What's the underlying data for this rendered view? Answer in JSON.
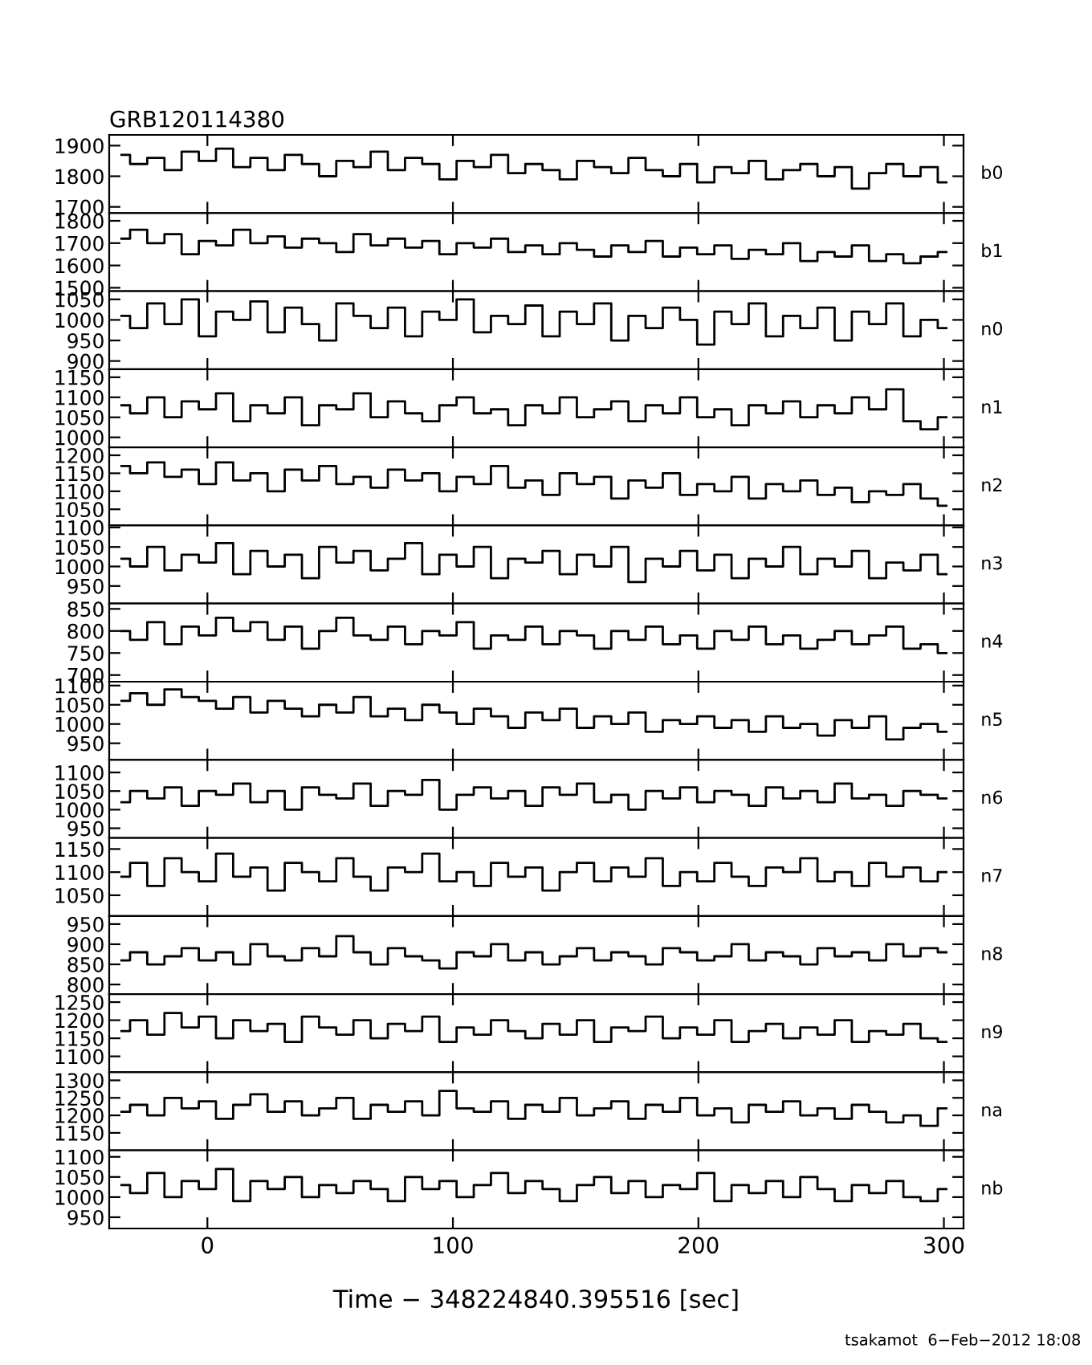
{
  "chart_data": [
    {
      "type": "step",
      "title": "GRB120114380",
      "y2label": "b0",
      "tick_labels": "y",
      "xlim": [
        -40,
        308
      ],
      "xticks": [
        0,
        100,
        200,
        300
      ],
      "ylim": [
        1680,
        1935
      ],
      "yticks": [
        1700,
        1800,
        1900
      ],
      "x": [
        -35,
        -28,
        -21,
        -14,
        -7,
        0,
        7,
        14,
        21,
        28,
        35,
        42,
        49,
        56,
        63,
        70,
        77,
        84,
        91,
        98,
        105,
        112,
        119,
        126,
        133,
        140,
        147,
        154,
        161,
        168,
        175,
        182,
        189,
        196,
        203,
        210,
        217,
        224,
        231,
        238,
        245,
        252,
        259,
        266,
        273,
        280,
        287,
        294,
        301
      ],
      "series": [
        {
          "color": "#000000",
          "values": [
            1870,
            1840,
            1860,
            1820,
            1880,
            1850,
            1890,
            1830,
            1860,
            1820,
            1870,
            1840,
            1800,
            1850,
            1830,
            1880,
            1820,
            1860,
            1840,
            1790,
            1850,
            1830,
            1870,
            1810,
            1840,
            1820,
            1790,
            1850,
            1830,
            1810,
            1860,
            1820,
            1800,
            1840,
            1780,
            1830,
            1810,
            1850,
            1790,
            1820,
            1840,
            1800,
            1830,
            1760,
            1810,
            1840,
            1800,
            1830,
            1780
          ]
        }
      ]
    },
    {
      "type": "step",
      "y2label": "b1",
      "tick_labels": "y",
      "xlim": [
        -40,
        308
      ],
      "xticks": [
        0,
        100,
        200,
        300
      ],
      "ylim": [
        1485,
        1835
      ],
      "yticks": [
        1500,
        1600,
        1700,
        1800
      ],
      "x": [
        -35,
        -28,
        -21,
        -14,
        -7,
        0,
        7,
        14,
        21,
        28,
        35,
        42,
        49,
        56,
        63,
        70,
        77,
        84,
        91,
        98,
        105,
        112,
        119,
        126,
        133,
        140,
        147,
        154,
        161,
        168,
        175,
        182,
        189,
        196,
        203,
        210,
        217,
        224,
        231,
        238,
        245,
        252,
        259,
        266,
        273,
        280,
        287,
        294,
        301
      ],
      "series": [
        {
          "color": "#000000",
          "values": [
            1720,
            1760,
            1700,
            1740,
            1650,
            1710,
            1690,
            1760,
            1700,
            1730,
            1680,
            1720,
            1700,
            1660,
            1740,
            1690,
            1720,
            1680,
            1710,
            1650,
            1700,
            1680,
            1720,
            1660,
            1690,
            1650,
            1700,
            1670,
            1640,
            1690,
            1660,
            1710,
            1640,
            1680,
            1650,
            1690,
            1630,
            1670,
            1650,
            1700,
            1620,
            1660,
            1640,
            1690,
            1620,
            1650,
            1610,
            1640,
            1660
          ]
        }
      ]
    },
    {
      "type": "step",
      "y2label": "n0",
      "tick_labels": "y",
      "xlim": [
        -40,
        308
      ],
      "xticks": [
        0,
        100,
        200,
        300
      ],
      "ylim": [
        880,
        1070
      ],
      "yticks": [
        900,
        950,
        1000,
        1050
      ],
      "x": [
        -35,
        -28,
        -21,
        -14,
        -7,
        0,
        7,
        14,
        21,
        28,
        35,
        42,
        49,
        56,
        63,
        70,
        77,
        84,
        91,
        98,
        105,
        112,
        119,
        126,
        133,
        140,
        147,
        154,
        161,
        168,
        175,
        182,
        189,
        196,
        203,
        210,
        217,
        224,
        231,
        238,
        245,
        252,
        259,
        266,
        273,
        280,
        287,
        294,
        301
      ],
      "series": [
        {
          "color": "#000000",
          "values": [
            1010,
            980,
            1040,
            990,
            1050,
            960,
            1020,
            1000,
            1045,
            970,
            1030,
            990,
            950,
            1040,
            1010,
            980,
            1030,
            960,
            1020,
            1000,
            1050,
            970,
            1010,
            990,
            1035,
            960,
            1020,
            990,
            1040,
            950,
            1010,
            980,
            1030,
            1000,
            940,
            1020,
            990,
            1040,
            960,
            1010,
            980,
            1030,
            950,
            1020,
            990,
            1040,
            960,
            1000,
            980
          ]
        }
      ]
    },
    {
      "type": "step",
      "y2label": "n1",
      "tick_labels": "y",
      "xlim": [
        -40,
        308
      ],
      "xticks": [
        0,
        100,
        200,
        300
      ],
      "ylim": [
        975,
        1170
      ],
      "yticks": [
        1000,
        1050,
        1100,
        1150
      ],
      "x": [
        -35,
        -28,
        -21,
        -14,
        -7,
        0,
        7,
        14,
        21,
        28,
        35,
        42,
        49,
        56,
        63,
        70,
        77,
        84,
        91,
        98,
        105,
        112,
        119,
        126,
        133,
        140,
        147,
        154,
        161,
        168,
        175,
        182,
        189,
        196,
        203,
        210,
        217,
        224,
        231,
        238,
        245,
        252,
        259,
        266,
        273,
        280,
        287,
        294,
        301
      ],
      "series": [
        {
          "color": "#000000",
          "values": [
            1080,
            1060,
            1100,
            1050,
            1090,
            1070,
            1110,
            1040,
            1080,
            1060,
            1100,
            1030,
            1080,
            1070,
            1110,
            1050,
            1090,
            1060,
            1040,
            1080,
            1100,
            1060,
            1070,
            1030,
            1080,
            1060,
            1100,
            1050,
            1070,
            1090,
            1040,
            1080,
            1060,
            1100,
            1050,
            1070,
            1030,
            1080,
            1060,
            1090,
            1050,
            1080,
            1060,
            1100,
            1070,
            1120,
            1040,
            1020,
            1050
          ]
        }
      ]
    },
    {
      "type": "step",
      "y2label": "n2",
      "tick_labels": "y",
      "xlim": [
        -40,
        308
      ],
      "xticks": [
        0,
        100,
        200,
        300
      ],
      "ylim": [
        1005,
        1222
      ],
      "yticks": [
        1050,
        1100,
        1150,
        1200
      ],
      "x": [
        -35,
        -28,
        -21,
        -14,
        -7,
        0,
        7,
        14,
        21,
        28,
        35,
        42,
        49,
        56,
        63,
        70,
        77,
        84,
        91,
        98,
        105,
        112,
        119,
        126,
        133,
        140,
        147,
        154,
        161,
        168,
        175,
        182,
        189,
        196,
        203,
        210,
        217,
        224,
        231,
        238,
        245,
        252,
        259,
        266,
        273,
        280,
        287,
        294,
        301
      ],
      "series": [
        {
          "color": "#000000",
          "values": [
            1170,
            1150,
            1180,
            1140,
            1160,
            1120,
            1180,
            1130,
            1150,
            1100,
            1160,
            1130,
            1170,
            1120,
            1140,
            1110,
            1160,
            1130,
            1150,
            1100,
            1140,
            1120,
            1170,
            1110,
            1130,
            1090,
            1150,
            1120,
            1140,
            1080,
            1130,
            1110,
            1150,
            1090,
            1120,
            1100,
            1140,
            1080,
            1120,
            1100,
            1130,
            1090,
            1110,
            1070,
            1100,
            1090,
            1120,
            1080,
            1060
          ]
        }
      ]
    },
    {
      "type": "step",
      "y2label": "n3",
      "tick_labels": "y",
      "xlim": [
        -40,
        308
      ],
      "xticks": [
        0,
        100,
        200,
        300
      ],
      "ylim": [
        905,
        1105
      ],
      "yticks": [
        950,
        1000,
        1050,
        1100
      ],
      "x": [
        -35,
        -28,
        -21,
        -14,
        -7,
        0,
        7,
        14,
        21,
        28,
        35,
        42,
        49,
        56,
        63,
        70,
        77,
        84,
        91,
        98,
        105,
        112,
        119,
        126,
        133,
        140,
        147,
        154,
        161,
        168,
        175,
        182,
        189,
        196,
        203,
        210,
        217,
        224,
        231,
        238,
        245,
        252,
        259,
        266,
        273,
        280,
        287,
        294,
        301
      ],
      "series": [
        {
          "color": "#000000",
          "values": [
            1020,
            1000,
            1050,
            990,
            1030,
            1010,
            1060,
            980,
            1040,
            1000,
            1030,
            970,
            1050,
            1010,
            1040,
            990,
            1020,
            1060,
            980,
            1030,
            1000,
            1050,
            970,
            1020,
            1010,
            1040,
            980,
            1030,
            1000,
            1050,
            960,
            1020,
            1000,
            1040,
            990,
            1030,
            970,
            1020,
            1000,
            1050,
            980,
            1020,
            1000,
            1040,
            970,
            1010,
            990,
            1030,
            980
          ]
        }
      ]
    },
    {
      "type": "step",
      "y2label": "n4",
      "tick_labels": "y",
      "xlim": [
        -40,
        308
      ],
      "xticks": [
        0,
        100,
        200,
        300
      ],
      "ylim": [
        685,
        862
      ],
      "yticks": [
        700,
        750,
        800,
        850
      ],
      "x": [
        -35,
        -28,
        -21,
        -14,
        -7,
        0,
        7,
        14,
        21,
        28,
        35,
        42,
        49,
        56,
        63,
        70,
        77,
        84,
        91,
        98,
        105,
        112,
        119,
        126,
        133,
        140,
        147,
        154,
        161,
        168,
        175,
        182,
        189,
        196,
        203,
        210,
        217,
        224,
        231,
        238,
        245,
        252,
        259,
        266,
        273,
        280,
        287,
        294,
        301
      ],
      "series": [
        {
          "color": "#000000",
          "values": [
            800,
            780,
            820,
            770,
            810,
            790,
            830,
            800,
            820,
            780,
            810,
            760,
            800,
            830,
            790,
            780,
            810,
            770,
            800,
            790,
            820,
            760,
            790,
            780,
            810,
            770,
            800,
            790,
            760,
            800,
            780,
            810,
            770,
            790,
            760,
            800,
            780,
            810,
            770,
            790,
            760,
            780,
            800,
            770,
            790,
            810,
            760,
            770,
            750
          ]
        }
      ]
    },
    {
      "type": "step",
      "y2label": "n5",
      "tick_labels": "y",
      "xlim": [
        -40,
        308
      ],
      "xticks": [
        0,
        100,
        200,
        300
      ],
      "ylim": [
        907,
        1110
      ],
      "yticks": [
        950,
        1000,
        1050,
        1100
      ],
      "x": [
        -35,
        -28,
        -21,
        -14,
        -7,
        0,
        7,
        14,
        21,
        28,
        35,
        42,
        49,
        56,
        63,
        70,
        77,
        84,
        91,
        98,
        105,
        112,
        119,
        126,
        133,
        140,
        147,
        154,
        161,
        168,
        175,
        182,
        189,
        196,
        203,
        210,
        217,
        224,
        231,
        238,
        245,
        252,
        259,
        266,
        273,
        280,
        287,
        294,
        301
      ],
      "series": [
        {
          "color": "#000000",
          "values": [
            1060,
            1080,
            1050,
            1090,
            1070,
            1060,
            1040,
            1070,
            1030,
            1060,
            1040,
            1020,
            1050,
            1030,
            1070,
            1020,
            1040,
            1010,
            1050,
            1030,
            1000,
            1040,
            1020,
            990,
            1030,
            1010,
            1040,
            990,
            1020,
            1000,
            1030,
            980,
            1010,
            1000,
            1020,
            990,
            1010,
            980,
            1020,
            990,
            1000,
            970,
            1010,
            990,
            1020,
            960,
            990,
            1000,
            980
          ]
        }
      ]
    },
    {
      "type": "step",
      "y2label": "n6",
      "tick_labels": "y",
      "xlim": [
        -40,
        308
      ],
      "xticks": [
        0,
        100,
        200,
        300
      ],
      "ylim": [
        924,
        1134
      ],
      "yticks": [
        950,
        1000,
        1050,
        1100
      ],
      "x": [
        -35,
        -28,
        -21,
        -14,
        -7,
        0,
        7,
        14,
        21,
        28,
        35,
        42,
        49,
        56,
        63,
        70,
        77,
        84,
        91,
        98,
        105,
        112,
        119,
        126,
        133,
        140,
        147,
        154,
        161,
        168,
        175,
        182,
        189,
        196,
        203,
        210,
        217,
        224,
        231,
        238,
        245,
        252,
        259,
        266,
        273,
        280,
        287,
        294,
        301
      ],
      "series": [
        {
          "color": "#000000",
          "values": [
            1020,
            1050,
            1030,
            1060,
            1010,
            1050,
            1040,
            1070,
            1020,
            1050,
            1000,
            1060,
            1040,
            1030,
            1070,
            1010,
            1050,
            1040,
            1080,
            1000,
            1040,
            1060,
            1030,
            1050,
            1010,
            1060,
            1040,
            1070,
            1020,
            1040,
            1000,
            1050,
            1030,
            1060,
            1020,
            1050,
            1040,
            1010,
            1060,
            1030,
            1050,
            1020,
            1070,
            1030,
            1040,
            1010,
            1050,
            1040,
            1030
          ]
        }
      ]
    },
    {
      "type": "step",
      "y2label": "n7",
      "tick_labels": "y",
      "xlim": [
        -40,
        308
      ],
      "xticks": [
        0,
        100,
        200,
        300
      ],
      "ylim": [
        1005,
        1174
      ],
      "yticks": [
        1050,
        1100,
        1150
      ],
      "x": [
        -35,
        -28,
        -21,
        -14,
        -7,
        0,
        7,
        14,
        21,
        28,
        35,
        42,
        49,
        56,
        63,
        70,
        77,
        84,
        91,
        98,
        105,
        112,
        119,
        126,
        133,
        140,
        147,
        154,
        161,
        168,
        175,
        182,
        189,
        196,
        203,
        210,
        217,
        224,
        231,
        238,
        245,
        252,
        259,
        266,
        273,
        280,
        287,
        294,
        301
      ],
      "series": [
        {
          "color": "#000000",
          "values": [
            1090,
            1120,
            1070,
            1130,
            1100,
            1080,
            1140,
            1090,
            1110,
            1060,
            1120,
            1100,
            1080,
            1130,
            1090,
            1060,
            1110,
            1100,
            1140,
            1080,
            1100,
            1070,
            1120,
            1090,
            1110,
            1060,
            1100,
            1120,
            1080,
            1110,
            1090,
            1130,
            1070,
            1100,
            1080,
            1120,
            1090,
            1070,
            1110,
            1100,
            1130,
            1080,
            1100,
            1070,
            1120,
            1090,
            1110,
            1080,
            1100
          ]
        }
      ]
    },
    {
      "type": "step",
      "y2label": "n8",
      "tick_labels": "y",
      "xlim": [
        -40,
        308
      ],
      "xticks": [
        0,
        100,
        200,
        300
      ],
      "ylim": [
        776,
        970
      ],
      "yticks": [
        800,
        850,
        900,
        950
      ],
      "x": [
        -35,
        -28,
        -21,
        -14,
        -7,
        0,
        7,
        14,
        21,
        28,
        35,
        42,
        49,
        56,
        63,
        70,
        77,
        84,
        91,
        98,
        105,
        112,
        119,
        126,
        133,
        140,
        147,
        154,
        161,
        168,
        175,
        182,
        189,
        196,
        203,
        210,
        217,
        224,
        231,
        238,
        245,
        252,
        259,
        266,
        273,
        280,
        287,
        294,
        301
      ],
      "series": [
        {
          "color": "#000000",
          "values": [
            860,
            880,
            850,
            870,
            890,
            860,
            880,
            850,
            900,
            870,
            860,
            890,
            870,
            920,
            880,
            850,
            890,
            870,
            860,
            840,
            880,
            870,
            900,
            860,
            880,
            850,
            870,
            890,
            860,
            880,
            870,
            850,
            890,
            880,
            860,
            870,
            900,
            860,
            880,
            870,
            850,
            890,
            870,
            880,
            860,
            900,
            870,
            890,
            880
          ]
        }
      ]
    },
    {
      "type": "step",
      "y2label": "n9",
      "tick_labels": "y",
      "xlim": [
        -40,
        308
      ],
      "xticks": [
        0,
        100,
        200,
        300
      ],
      "ylim": [
        1056,
        1272
      ],
      "yticks": [
        1100,
        1150,
        1200,
        1250
      ],
      "x": [
        -35,
        -28,
        -21,
        -14,
        -7,
        0,
        7,
        14,
        21,
        28,
        35,
        42,
        49,
        56,
        63,
        70,
        77,
        84,
        91,
        98,
        105,
        112,
        119,
        126,
        133,
        140,
        147,
        154,
        161,
        168,
        175,
        182,
        189,
        196,
        203,
        210,
        217,
        224,
        231,
        238,
        245,
        252,
        259,
        266,
        273,
        280,
        287,
        294,
        301
      ],
      "series": [
        {
          "color": "#000000",
          "values": [
            1170,
            1200,
            1160,
            1220,
            1180,
            1210,
            1150,
            1200,
            1170,
            1190,
            1140,
            1210,
            1180,
            1160,
            1200,
            1150,
            1190,
            1170,
            1210,
            1140,
            1180,
            1160,
            1200,
            1170,
            1150,
            1190,
            1160,
            1200,
            1140,
            1180,
            1170,
            1210,
            1150,
            1180,
            1160,
            1200,
            1140,
            1170,
            1190,
            1150,
            1180,
            1160,
            1200,
            1140,
            1170,
            1160,
            1190,
            1150,
            1140
          ]
        }
      ]
    },
    {
      "type": "step",
      "y2label": "na",
      "tick_labels": "y",
      "xlim": [
        -40,
        308
      ],
      "xticks": [
        0,
        100,
        200,
        300
      ],
      "ylim": [
        1100,
        1323
      ],
      "yticks": [
        1150,
        1200,
        1250,
        1300
      ],
      "x": [
        -35,
        -28,
        -21,
        -14,
        -7,
        0,
        7,
        14,
        21,
        28,
        35,
        42,
        49,
        56,
        63,
        70,
        77,
        84,
        91,
        98,
        105,
        112,
        119,
        126,
        133,
        140,
        147,
        154,
        161,
        168,
        175,
        182,
        189,
        196,
        203,
        210,
        217,
        224,
        231,
        238,
        245,
        252,
        259,
        266,
        273,
        280,
        287,
        294,
        301
      ],
      "series": [
        {
          "color": "#000000",
          "values": [
            1210,
            1230,
            1200,
            1250,
            1220,
            1240,
            1190,
            1230,
            1260,
            1210,
            1240,
            1200,
            1220,
            1250,
            1190,
            1230,
            1210,
            1240,
            1200,
            1270,
            1220,
            1210,
            1240,
            1190,
            1230,
            1210,
            1250,
            1200,
            1220,
            1240,
            1190,
            1230,
            1210,
            1250,
            1200,
            1220,
            1180,
            1230,
            1210,
            1240,
            1200,
            1220,
            1190,
            1230,
            1210,
            1180,
            1200,
            1170,
            1220
          ]
        }
      ]
    },
    {
      "type": "step",
      "y2label": "nb",
      "xlabel": "Time − 348224840.395516 [sec]",
      "annotations": [
        "tsakamot  6−Feb−2012 18:08"
      ],
      "xlim": [
        -40,
        308
      ],
      "xticks": [
        0,
        100,
        200,
        300
      ],
      "ylim": [
        922,
        1116
      ],
      "yticks": [
        950,
        1000,
        1050,
        1100
      ],
      "x": [
        -35,
        -28,
        -21,
        -14,
        -7,
        0,
        7,
        14,
        21,
        28,
        35,
        42,
        49,
        56,
        63,
        70,
        77,
        84,
        91,
        98,
        105,
        112,
        119,
        126,
        133,
        140,
        147,
        154,
        161,
        168,
        175,
        182,
        189,
        196,
        203,
        210,
        217,
        224,
        231,
        238,
        245,
        252,
        259,
        266,
        273,
        280,
        287,
        294,
        301
      ],
      "series": [
        {
          "color": "#000000",
          "values": [
            1030,
            1010,
            1060,
            1000,
            1040,
            1020,
            1070,
            990,
            1040,
            1020,
            1050,
            1000,
            1030,
            1010,
            1040,
            1020,
            990,
            1050,
            1020,
            1040,
            1000,
            1030,
            1060,
            1010,
            1040,
            1020,
            990,
            1030,
            1050,
            1010,
            1040,
            1000,
            1030,
            1020,
            1060,
            990,
            1030,
            1010,
            1040,
            1000,
            1050,
            1020,
            990,
            1030,
            1010,
            1040,
            1000,
            990,
            1020
          ]
        }
      ]
    }
  ]
}
